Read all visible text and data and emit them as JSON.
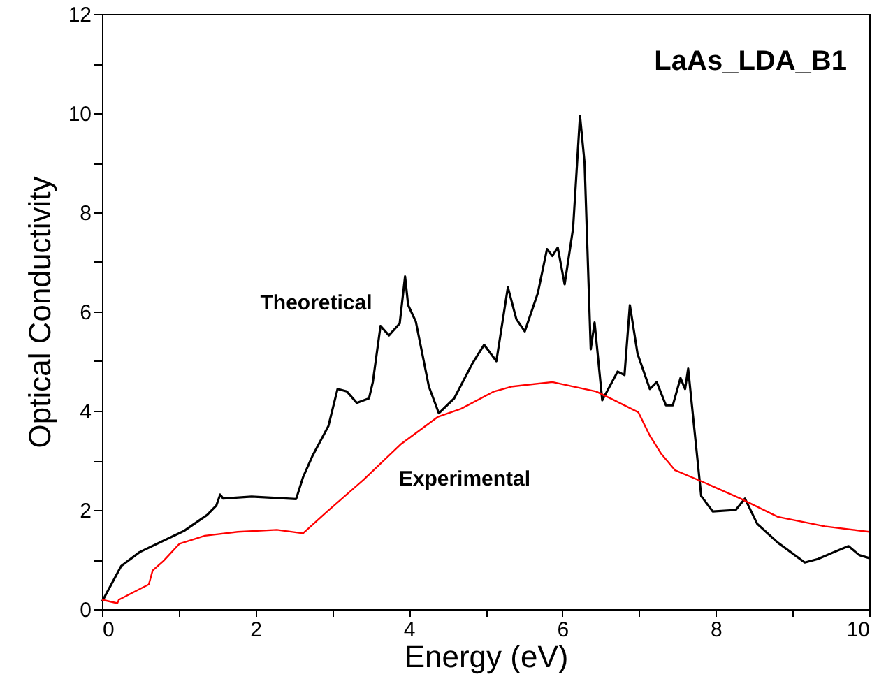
{
  "chart_data": {
    "type": "line",
    "xlabel": "Energy (eV)",
    "ylabel": "Optical Conductivity",
    "annotations": [
      "LaAs_LDA_B1"
    ],
    "xlim": [
      0,
      10
    ],
    "ylim": [
      0,
      12
    ],
    "xticks": [
      0,
      {
        "value": 1,
        "label": null
      },
      2,
      {
        "value": 3,
        "label": null
      },
      4,
      {
        "value": 5,
        "label": null
      },
      6,
      {
        "value": 7,
        "label": null
      },
      8,
      {
        "value": 9,
        "label": null
      },
      10
    ],
    "yticks": [
      0,
      {
        "value": 1,
        "label": null
      },
      2,
      {
        "value": 3,
        "label": null
      },
      4,
      {
        "value": 5,
        "label": null
      },
      6,
      {
        "value": 7,
        "label": null
      },
      8,
      {
        "value": 9,
        "label": null
      },
      10,
      {
        "value": 11,
        "label": null
      },
      12
    ],
    "grid": false,
    "legend": false,
    "marker": "none",
    "line_style": "solid",
    "series": [
      {
        "name": "Theoretical",
        "color": "#000000",
        "x": [
          0,
          0.25,
          0.49,
          1.07,
          1.37,
          1.49,
          1.54,
          1.58,
          1.95,
          2.53,
          2.62,
          2.74,
          2.95,
          3.07,
          3.19,
          3.32,
          3.48,
          3.53,
          3.63,
          3.74,
          3.88,
          3.95,
          3.99,
          4.09,
          4.26,
          4.39,
          4.59,
          4.83,
          4.98,
          5.14,
          5.29,
          5.4,
          5.51,
          5.68,
          5.8,
          5.87,
          5.94,
          6.03,
          6.14,
          6.23,
          6.29,
          6.37,
          6.42,
          6.52,
          6.72,
          6.81,
          6.88,
          6.98,
          7.14,
          7.23,
          7.35,
          7.44,
          7.54,
          7.6,
          7.64,
          7.81,
          7.96,
          8.26,
          8.38,
          8.54,
          8.81,
          9.16,
          9.33,
          9.54,
          9.73,
          9.87,
          10
        ],
        "values": [
          0.15,
          0.87,
          1.15,
          1.58,
          1.9,
          2.09,
          2.31,
          2.23,
          2.27,
          2.22,
          2.66,
          3.08,
          3.69,
          4.44,
          4.39,
          4.16,
          4.25,
          4.58,
          5.71,
          5.52,
          5.76,
          6.71,
          6.13,
          5.8,
          4.49,
          3.95,
          4.25,
          4.96,
          5.33,
          5.0,
          6.49,
          5.85,
          5.6,
          6.37,
          7.26,
          7.12,
          7.29,
          6.55,
          7.68,
          9.95,
          8.99,
          5.24,
          5.78,
          4.21,
          4.79,
          4.72,
          6.13,
          5.15,
          4.44,
          4.58,
          4.11,
          4.11,
          4.66,
          4.44,
          4.85,
          2.28,
          1.97,
          2.0,
          2.23,
          1.72,
          1.34,
          0.94,
          1.01,
          1.15,
          1.27,
          1.09,
          1.03
        ]
      },
      {
        "name": "Experimental",
        "color": "#ff0000",
        "x": [
          0,
          0.2,
          0.22,
          0.61,
          0.66,
          0.8,
          1.01,
          1.34,
          1.77,
          2.28,
          2.62,
          2.92,
          3.41,
          3.89,
          4.38,
          4.68,
          5.11,
          5.35,
          5.87,
          6.44,
          6.68,
          6.99,
          7.14,
          7.29,
          7.47,
          7.84,
          8.32,
          8.81,
          9.42,
          10
        ],
        "values": [
          0.19,
          0.12,
          0.19,
          0.5,
          0.78,
          0.97,
          1.32,
          1.48,
          1.56,
          1.6,
          1.53,
          1.95,
          2.61,
          3.32,
          3.88,
          4.04,
          4.39,
          4.49,
          4.58,
          4.39,
          4.21,
          3.97,
          3.5,
          3.13,
          2.8,
          2.56,
          2.23,
          1.86,
          1.67,
          1.56
        ]
      }
    ]
  }
}
